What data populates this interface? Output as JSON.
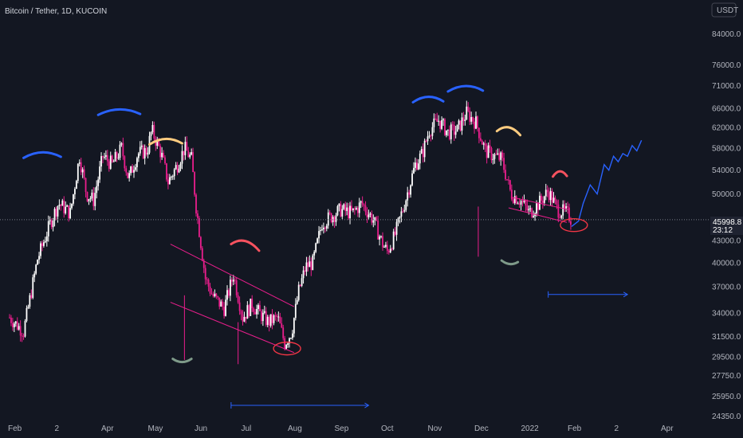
{
  "chart_data": {
    "type": "candlestick",
    "title": "Bitcoin / Tether, 1D, KUCOIN",
    "currency_label": "USDT",
    "y_ticks": [
      "84000.0",
      "76000.0",
      "71000.0",
      "66000.0",
      "62000.0",
      "58000.0",
      "54000.0",
      "50000.0",
      "46000.0",
      "43000.0",
      "40000.0",
      "37000.0",
      "34000.0",
      "31500.0",
      "29500.0",
      "27750.0",
      "25950.0",
      "24350.0"
    ],
    "x_ticks": [
      "Feb",
      "2",
      "Apr",
      "May",
      "Jun",
      "Jul",
      "Aug",
      "Sep",
      "Oct",
      "Nov",
      "Dec",
      "2022",
      "Feb",
      "2",
      "Apr"
    ],
    "price_badge": {
      "value": "45998.8",
      "countdown": "23:12"
    },
    "price_line": 45998.8,
    "price_path": [
      [
        0,
        33500
      ],
      [
        0.3,
        32000
      ],
      [
        0.6,
        40500
      ],
      [
        0.9,
        46000
      ],
      [
        1.05,
        48500
      ],
      [
        1.3,
        47000
      ],
      [
        1.5,
        56500
      ],
      [
        1.65,
        50000
      ],
      [
        1.8,
        49000
      ],
      [
        2.0,
        56500
      ],
      [
        2.2,
        55000
      ],
      [
        2.4,
        58000
      ],
      [
        2.55,
        52500
      ],
      [
        2.75,
        57000
      ],
      [
        2.95,
        57500
      ],
      [
        3.05,
        61500
      ],
      [
        3.25,
        57000
      ],
      [
        3.4,
        52000
      ],
      [
        3.6,
        55000
      ],
      [
        3.75,
        58000
      ],
      [
        3.9,
        56000
      ],
      [
        4.0,
        48000
      ],
      [
        4.2,
        38000
      ],
      [
        4.35,
        36000
      ],
      [
        4.6,
        34500
      ],
      [
        4.8,
        38500
      ],
      [
        5.0,
        33500
      ],
      [
        5.2,
        35000
      ],
      [
        5.35,
        34000
      ],
      [
        5.55,
        33000
      ],
      [
        5.75,
        33500
      ],
      [
        5.9,
        30800
      ],
      [
        6.05,
        32000
      ],
      [
        6.2,
        36500
      ],
      [
        6.35,
        39500
      ],
      [
        6.5,
        40000
      ],
      [
        6.7,
        45500
      ],
      [
        6.9,
        46500
      ],
      [
        7.1,
        47500
      ],
      [
        7.35,
        47000
      ],
      [
        7.55,
        48500
      ],
      [
        7.8,
        46000
      ],
      [
        8.0,
        42500
      ],
      [
        8.1,
        41500
      ],
      [
        8.25,
        43500
      ],
      [
        8.45,
        48000
      ],
      [
        8.7,
        55000
      ],
      [
        8.85,
        57000
      ],
      [
        9.0,
        61500
      ],
      [
        9.2,
        63500
      ],
      [
        9.4,
        61000
      ],
      [
        9.6,
        61500
      ],
      [
        9.8,
        65000
      ],
      [
        10.0,
        63000
      ],
      [
        10.2,
        57500
      ],
      [
        10.4,
        56500
      ],
      [
        10.55,
        56000
      ],
      [
        10.75,
        50000
      ],
      [
        10.95,
        49000
      ],
      [
        11.15,
        47000
      ],
      [
        11.35,
        48500
      ],
      [
        11.55,
        50500
      ],
      [
        11.75,
        47500
      ],
      [
        11.95,
        47000
      ],
      [
        12.05,
        46000
      ]
    ],
    "forecast_path": [
      [
        12.05,
        45000
      ],
      [
        12.2,
        45800
      ],
      [
        12.3,
        48500
      ],
      [
        12.45,
        51500
      ],
      [
        12.6,
        50000
      ],
      [
        12.75,
        55000
      ],
      [
        12.85,
        54000
      ],
      [
        12.95,
        56500
      ],
      [
        13.05,
        55500
      ],
      [
        13.15,
        57000
      ],
      [
        13.25,
        56500
      ],
      [
        13.35,
        58500
      ],
      [
        13.45,
        57500
      ],
      [
        13.55,
        59500
      ]
    ],
    "annotations": {
      "blue_arcs": [
        [
          0.3,
          56200,
          1.1,
          56400
        ],
        [
          1.9,
          64600,
          2.8,
          64800
        ],
        [
          8.65,
          67300,
          9.3,
          67500
        ],
        [
          9.4,
          69700,
          10.15,
          69900
        ]
      ],
      "yellow_arcs": [
        [
          3.0,
          58700,
          3.7,
          58900
        ],
        [
          10.45,
          61300,
          10.95,
          60500
        ]
      ],
      "red_arcs": [
        [
          4.75,
          42500,
          5.35,
          41600
        ],
        [
          11.65,
          52900,
          11.95,
          53000
        ]
      ],
      "green_arcs": [
        [
          3.5,
          29300,
          3.9,
          29300
        ],
        [
          10.55,
          40300,
          10.9,
          40100
        ]
      ],
      "channel_upper": [
        [
          3.45,
          42500
        ],
        [
          6.1,
          34700
        ]
      ],
      "channel_lower": [
        [
          3.45,
          35200
        ],
        [
          6.1,
          29900
        ]
      ],
      "small_channel_upper": [
        [
          10.75,
          49500
        ],
        [
          12.0,
          47500
        ]
      ],
      "small_channel_lower": [
        [
          10.7,
          47800
        ],
        [
          11.95,
          45600
        ]
      ],
      "ellipses": [
        [
          5.95,
          30300
        ],
        [
          12.1,
          45200
        ]
      ],
      "range_bars": [
        [
          4.75,
          7.7,
          25200
        ],
        [
          11.55,
          13.25,
          36100
        ]
      ]
    }
  },
  "colors": {
    "background": "#131722",
    "bull": "#ffffff",
    "bear": "#e91e8c",
    "forecast": "#2962ff",
    "blue_arc": "#2962ff",
    "yellow_arc": "#ffcc80",
    "red_arc": "#f7525f",
    "green_arc": "#7e9a89",
    "ellipse": "#f23645",
    "range": "#2962ff",
    "badge": "#1f2331"
  },
  "icons": {
    "scale_toggle": "usdt-label"
  }
}
